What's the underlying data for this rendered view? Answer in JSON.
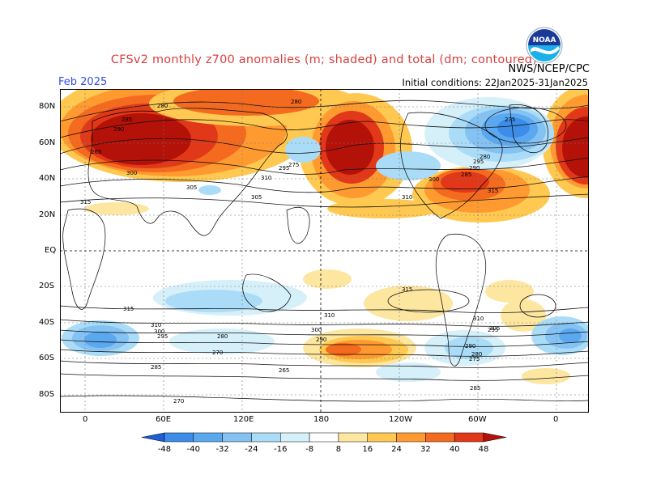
{
  "header": {
    "title": "CFSv2 monthly z700 anomalies (m; shaded) and total (dm; contoured)",
    "credit": "NWS/NCEP/CPC",
    "month": "Feb 2025",
    "initial_conditions": "Initial conditions: 22Jan2025-31Jan2025",
    "logo_text": "NOAA"
  },
  "axes": {
    "lat_labels": [
      "80N",
      "60N",
      "40N",
      "20N",
      "EQ",
      "20S",
      "40S",
      "60S",
      "80S"
    ],
    "lon_labels": [
      "0",
      "60E",
      "120E",
      "180",
      "120W",
      "60W",
      "0"
    ]
  },
  "colorbar": {
    "labels": [
      "-48",
      "-40",
      "-32",
      "-24",
      "-16",
      "-8",
      "8",
      "16",
      "24",
      "32",
      "40",
      "48"
    ],
    "colors": [
      "#1f5fd6",
      "#3c8ce8",
      "#5aa8f0",
      "#84c2f4",
      "#aadcf8",
      "#d6f0fa",
      "#ffffff",
      "#fde6a0",
      "#ffc850",
      "#ff9a30",
      "#f46a1e",
      "#e03818",
      "#b41208"
    ]
  },
  "contour_labels": [
    "265",
    "280",
    "285",
    "290",
    "280",
    "275",
    "295",
    "300",
    "305",
    "310",
    "315",
    "275",
    "305",
    "310",
    "300",
    "295",
    "290",
    "285",
    "280",
    "315",
    "310",
    "315",
    "300",
    "290",
    "280",
    "270",
    "295",
    "285",
    "310",
    "315",
    "310",
    "305",
    "300",
    "295",
    "290",
    "285",
    "280",
    "275",
    "270",
    "265"
  ]
}
